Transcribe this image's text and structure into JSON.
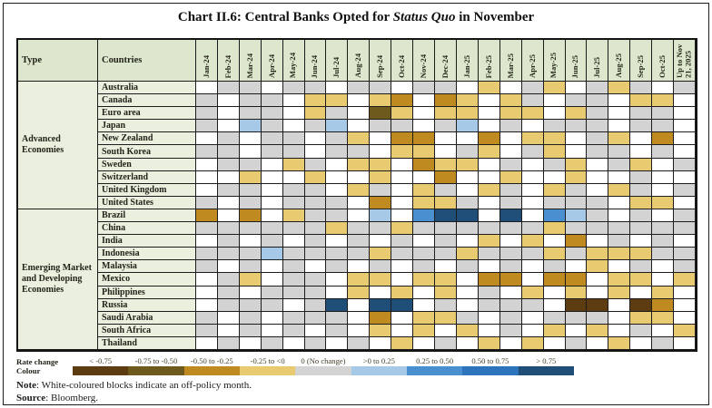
{
  "title": {
    "prefix": "Chart II.6: Central Banks Opted for ",
    "italic": "Status Quo",
    "suffix": " in November"
  },
  "chart_data": {
    "type": "heatmap",
    "title": "Chart II.6: Central Banks Opted for Status Quo in November",
    "type_header": "Type",
    "countries_header": "Countries",
    "columns": [
      "Jan-24",
      "Feb-24",
      "Mar-24",
      "Apr-24",
      "May-24",
      "Jun-24",
      "Jul-24",
      "Aug-24",
      "Sep-24",
      "Oct-24",
      "Nov-24",
      "Dec-24",
      "Jan-25",
      "Feb-25",
      "Mar-25",
      "Apr-25",
      "May-25",
      "Jun-25",
      "Jul-25",
      "Aug-25",
      "Sep-25",
      "Oct-25",
      "Up to Nov 21, 2025"
    ],
    "value_codes": {
      "w": "off-policy month (white)",
      "0": "0 (No change)",
      "d1": "-0.25 to <0",
      "d2": "-0.50 to -0.25",
      "d3": "-0.75 to -0.50",
      "d4": "< -0.75",
      "u1": ">0 to 0.25",
      "u2": "0.25 to 0.50",
      "u3": "0.50 to 0.75",
      "u4": "> 0.75"
    },
    "groups": [
      {
        "label": "Advanced Economies",
        "rows": [
          {
            "country": "Australia",
            "values": [
              "w",
              "0",
              "0",
              "w",
              "0",
              "0",
              "w",
              "0",
              "0",
              "w",
              "0",
              "0",
              "w",
              "d1",
              "w",
              "0",
              "d1",
              "w",
              "0",
              "d1",
              "0",
              "w",
              "0"
            ]
          },
          {
            "country": "Canada",
            "values": [
              "0",
              "w",
              "0",
              "0",
              "w",
              "d1",
              "d1",
              "w",
              "d1",
              "d2",
              "w",
              "d2",
              "d1",
              "w",
              "d1",
              "0",
              "w",
              "0",
              "0",
              "w",
              "d1",
              "d1",
              "w"
            ]
          },
          {
            "country": "Euro area",
            "values": [
              "0",
              "w",
              "0",
              "0",
              "w",
              "d1",
              "0",
              "w",
              "d3",
              "d1",
              "w",
              "d1",
              "d1",
              "w",
              "d1",
              "d1",
              "w",
              "d1",
              "0",
              "w",
              "0",
              "0",
              "w"
            ]
          },
          {
            "country": "Japan",
            "values": [
              "0",
              "w",
              "u1",
              "0",
              "w",
              "0",
              "u1",
              "w",
              "0",
              "0",
              "w",
              "0",
              "u1",
              "w",
              "0",
              "w",
              "0",
              "0",
              "0",
              "w",
              "0",
              "0",
              "w"
            ]
          },
          {
            "country": "New Zealand",
            "values": [
              "w",
              "0",
              "w",
              "0",
              "0",
              "w",
              "0",
              "d1",
              "w",
              "d2",
              "d2",
              "w",
              "w",
              "d2",
              "w",
              "d1",
              "d1",
              "w",
              "0",
              "d1",
              "w",
              "d2",
              "w"
            ]
          },
          {
            "country": "South Korea",
            "values": [
              "0",
              "0",
              "w",
              "0",
              "0",
              "w",
              "0",
              "0",
              "w",
              "d1",
              "d1",
              "w",
              "0",
              "d1",
              "w",
              "0",
              "d1",
              "w",
              "0",
              "0",
              "w",
              "0",
              "w"
            ]
          },
          {
            "country": "Sweden",
            "values": [
              "w",
              "0",
              "0",
              "w",
              "d1",
              "0",
              "w",
              "d1",
              "d1",
              "w",
              "d2",
              "d1",
              "d1",
              "w",
              "0",
              "w",
              "0",
              "d1",
              "w",
              "0",
              "d1",
              "w",
              "0"
            ]
          },
          {
            "country": "Switzerland",
            "values": [
              "w",
              "w",
              "d1",
              "w",
              "w",
              "d1",
              "w",
              "w",
              "d1",
              "w",
              "w",
              "d2",
              "w",
              "w",
              "d1",
              "w",
              "w",
              "d1",
              "w",
              "w",
              "0",
              "w",
              "w"
            ]
          },
          {
            "country": "United Kingdom",
            "values": [
              "w",
              "0",
              "0",
              "w",
              "0",
              "0",
              "w",
              "d1",
              "0",
              "w",
              "d1",
              "0",
              "w",
              "d1",
              "0",
              "w",
              "d1",
              "0",
              "w",
              "d1",
              "0",
              "w",
              "0"
            ]
          },
          {
            "country": "United States",
            "values": [
              "0",
              "w",
              "0",
              "w",
              "0",
              "0",
              "0",
              "w",
              "d2",
              "w",
              "d1",
              "d1",
              "0",
              "w",
              "0",
              "w",
              "0",
              "0",
              "0",
              "w",
              "d1",
              "d1",
              "w"
            ]
          }
        ]
      },
      {
        "label": "Emerging Market and Developing Economies",
        "rows": [
          {
            "country": "Brazil",
            "values": [
              "d2",
              "w",
              "d2",
              "w",
              "d1",
              "0",
              "0",
              "w",
              "u1",
              "w",
              "u2",
              "u4",
              "u4",
              "w",
              "u4",
              "w",
              "u2",
              "u1",
              "0",
              "w",
              "0",
              "w",
              "0"
            ]
          },
          {
            "country": "China",
            "values": [
              "0",
              "0",
              "0",
              "0",
              "0",
              "0",
              "d1",
              "0",
              "0",
              "d1",
              "0",
              "0",
              "0",
              "0",
              "0",
              "0",
              "d1",
              "0",
              "0",
              "0",
              "0",
              "0",
              "0"
            ]
          },
          {
            "country": "India",
            "values": [
              "w",
              "0",
              "w",
              "0",
              "w",
              "0",
              "w",
              "0",
              "w",
              "0",
              "w",
              "0",
              "w",
              "d1",
              "w",
              "d1",
              "w",
              "d2",
              "w",
              "0",
              "w",
              "0",
              "w"
            ]
          },
          {
            "country": "Indonesia",
            "values": [
              "0",
              "0",
              "0",
              "u1",
              "0",
              "0",
              "0",
              "0",
              "d1",
              "0",
              "0",
              "0",
              "d1",
              "0",
              "0",
              "0",
              "d1",
              "0",
              "d1",
              "d1",
              "d1",
              "0",
              "0"
            ]
          },
          {
            "country": "Malaysia",
            "values": [
              "0",
              "w",
              "0",
              "w",
              "0",
              "w",
              "0",
              "w",
              "0",
              "w",
              "0",
              "w",
              "0",
              "w",
              "0",
              "w",
              "0",
              "w",
              "d1",
              "w",
              "0",
              "w",
              "0"
            ]
          },
          {
            "country": "Mexico",
            "values": [
              "w",
              "0",
              "d1",
              "w",
              "0",
              "0",
              "w",
              "d1",
              "d1",
              "w",
              "d1",
              "d1",
              "w",
              "d2",
              "d2",
              "w",
              "d2",
              "d2",
              "w",
              "d1",
              "d1",
              "w",
              "d1"
            ]
          },
          {
            "country": "Philippines",
            "values": [
              "w",
              "0",
              "w",
              "0",
              "0",
              "0",
              "w",
              "d1",
              "w",
              "d1",
              "w",
              "d1",
              "w",
              "0",
              "w",
              "d1",
              "w",
              "d1",
              "w",
              "d1",
              "w",
              "d1",
              "w"
            ]
          },
          {
            "country": "Russia",
            "values": [
              "w",
              "0",
              "0",
              "0",
              "w",
              "0",
              "u4",
              "w",
              "u4",
              "u4",
              "w",
              "0",
              "w",
              "0",
              "0",
              "0",
              "w",
              "d4",
              "d4",
              "w",
              "d4",
              "d2",
              "w"
            ]
          },
          {
            "country": "Saudi Arabia",
            "values": [
              "0",
              "w",
              "0",
              "w",
              "0",
              "0",
              "0",
              "w",
              "d2",
              "w",
              "d1",
              "d1",
              "0",
              "w",
              "0",
              "w",
              "0",
              "0",
              "0",
              "w",
              "d1",
              "d1",
              "w"
            ]
          },
          {
            "country": "South Africa",
            "values": [
              "0",
              "w",
              "0",
              "w",
              "0",
              "w",
              "0",
              "w",
              "d1",
              "w",
              "d1",
              "w",
              "d1",
              "w",
              "0",
              "w",
              "d1",
              "w",
              "d1",
              "w",
              "0",
              "w",
              "d1"
            ]
          },
          {
            "country": "Thailand",
            "values": [
              "w",
              "0",
              "w",
              "0",
              "w",
              "0",
              "w",
              "0",
              "w",
              "d1",
              "w",
              "0",
              "w",
              "d1",
              "w",
              "d1",
              "w",
              "0",
              "w",
              "d1",
              "w",
              "0",
              "w"
            ]
          }
        ]
      }
    ]
  },
  "palette": {
    "w": "#ffffff",
    "0": "#d3d3d3",
    "d1": "#e8ca70",
    "d2": "#bf8b21",
    "d3": "#6f5a1e",
    "d4": "#5c3c10",
    "u1": "#a7c9e8",
    "u2": "#4a8fd0",
    "u3": "#2e74bd",
    "u4": "#1f4e79"
  },
  "legend": {
    "label_line1": "Rate change",
    "label_line2": "Colour",
    "buckets": [
      {
        "label": "< -0.75",
        "code": "d4"
      },
      {
        "label": "-0.75 to -0.50",
        "code": "d3"
      },
      {
        "label": "-0.50 to -0.25",
        "code": "d2"
      },
      {
        "label": "-0.25 to <0",
        "code": "d1"
      },
      {
        "label": "0 (No change)",
        "code": "0"
      },
      {
        "label": ">0 to 0.25",
        "code": "u1"
      },
      {
        "label": "0.25 to 0.50",
        "code": "u2"
      },
      {
        "label": "0.50 to 0.75",
        "code": "u3"
      },
      {
        "label": "> 0.75",
        "code": "u4"
      }
    ]
  },
  "note": {
    "bold": "Note",
    "text": ": White-coloured blocks indicate an off-policy month."
  },
  "source": {
    "bold": "Source",
    "text": ": Bloomberg."
  }
}
